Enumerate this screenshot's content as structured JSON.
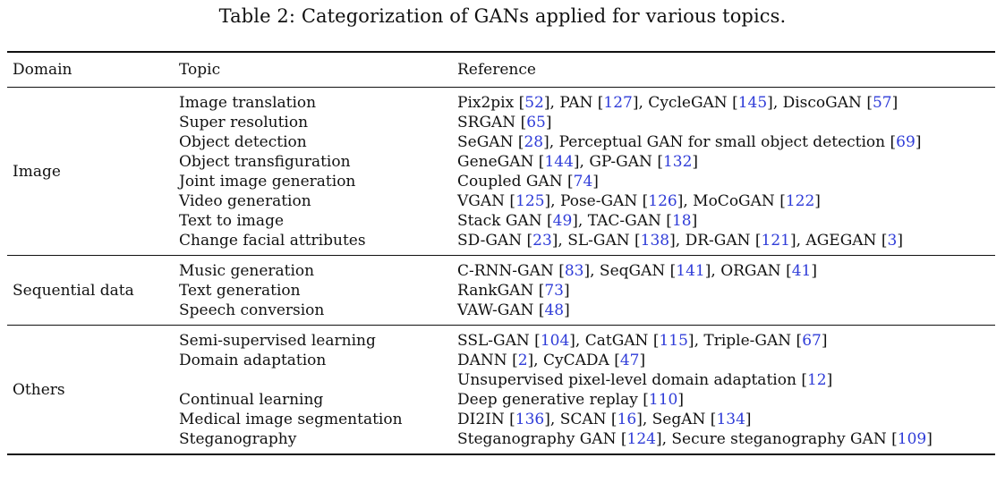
{
  "caption": "Table 2: Categorization of GANs applied for various topics.",
  "headers": {
    "domain": "Domain",
    "topic": "Topic",
    "reference": "Reference"
  },
  "groups": [
    {
      "domain": "Image",
      "rows": [
        {
          "topic": "Image translation",
          "refs": [
            [
              "Pix2pix ",
              "52"
            ],
            [
              ", PAN ",
              "127"
            ],
            [
              ", CycleGAN ",
              "145"
            ],
            [
              ", DiscoGAN ",
              "57"
            ]
          ]
        },
        {
          "topic": "Super resolution",
          "refs": [
            [
              "SRGAN ",
              "65"
            ]
          ]
        },
        {
          "topic": "Object detection",
          "refs": [
            [
              "SeGAN ",
              "28"
            ],
            [
              ", Perceptual GAN for small object detection ",
              "69"
            ]
          ]
        },
        {
          "topic": "Object transfiguration",
          "refs": [
            [
              "GeneGAN ",
              "144"
            ],
            [
              ", GP-GAN ",
              "132"
            ]
          ]
        },
        {
          "topic": "Joint image generation",
          "refs": [
            [
              "Coupled GAN ",
              "74"
            ]
          ]
        },
        {
          "topic": "Video generation",
          "refs": [
            [
              "VGAN ",
              "125"
            ],
            [
              ", Pose-GAN ",
              "126"
            ],
            [
              ", MoCoGAN ",
              "122"
            ]
          ]
        },
        {
          "topic": "Text to image",
          "refs": [
            [
              "Stack GAN ",
              "49"
            ],
            [
              ", TAC-GAN ",
              "18"
            ]
          ]
        },
        {
          "topic": "Change facial attributes",
          "refs": [
            [
              "SD-GAN ",
              "23"
            ],
            [
              ", SL-GAN ",
              "138"
            ],
            [
              ", DR-GAN ",
              "121"
            ],
            [
              ", AGEGAN ",
              "3"
            ]
          ]
        }
      ]
    },
    {
      "domain": "Sequential data",
      "rows": [
        {
          "topic": "Music generation",
          "refs": [
            [
              "C-RNN-GAN ",
              "83"
            ],
            [
              ", SeqGAN ",
              "141"
            ],
            [
              ", ORGAN ",
              "41"
            ]
          ]
        },
        {
          "topic": "Text generation",
          "refs": [
            [
              "RankGAN ",
              "73"
            ]
          ]
        },
        {
          "topic": "Speech conversion",
          "refs": [
            [
              "VAW-GAN ",
              "48"
            ]
          ]
        }
      ]
    },
    {
      "domain": "Others",
      "rows": [
        {
          "topic": "Semi-supervised learning",
          "refs": [
            [
              "SSL-GAN ",
              "104"
            ],
            [
              ", CatGAN ",
              "115"
            ],
            [
              ", Triple-GAN ",
              "67"
            ]
          ]
        },
        {
          "topic": "Domain adaptation",
          "refs": [
            [
              "DANN ",
              "2"
            ],
            [
              ", CyCADA ",
              "47"
            ]
          ]
        },
        {
          "topic": "",
          "refs": [
            [
              "Unsupervised pixel-level domain adaptation ",
              "12"
            ]
          ]
        },
        {
          "topic": "Continual learning",
          "refs": [
            [
              "Deep generative replay ",
              "110"
            ]
          ]
        },
        {
          "topic": "Medical image segmentation",
          "refs": [
            [
              "DI2IN ",
              "136"
            ],
            [
              ", SCAN ",
              "16"
            ],
            [
              ", SegAN ",
              "134"
            ]
          ]
        },
        {
          "topic": "Steganography",
          "refs": [
            [
              "Steganography GAN ",
              "124"
            ],
            [
              ", Secure steganography GAN ",
              "109"
            ]
          ]
        }
      ]
    }
  ],
  "colors": {
    "text": "#111111",
    "citation": "#2f3cd8"
  }
}
